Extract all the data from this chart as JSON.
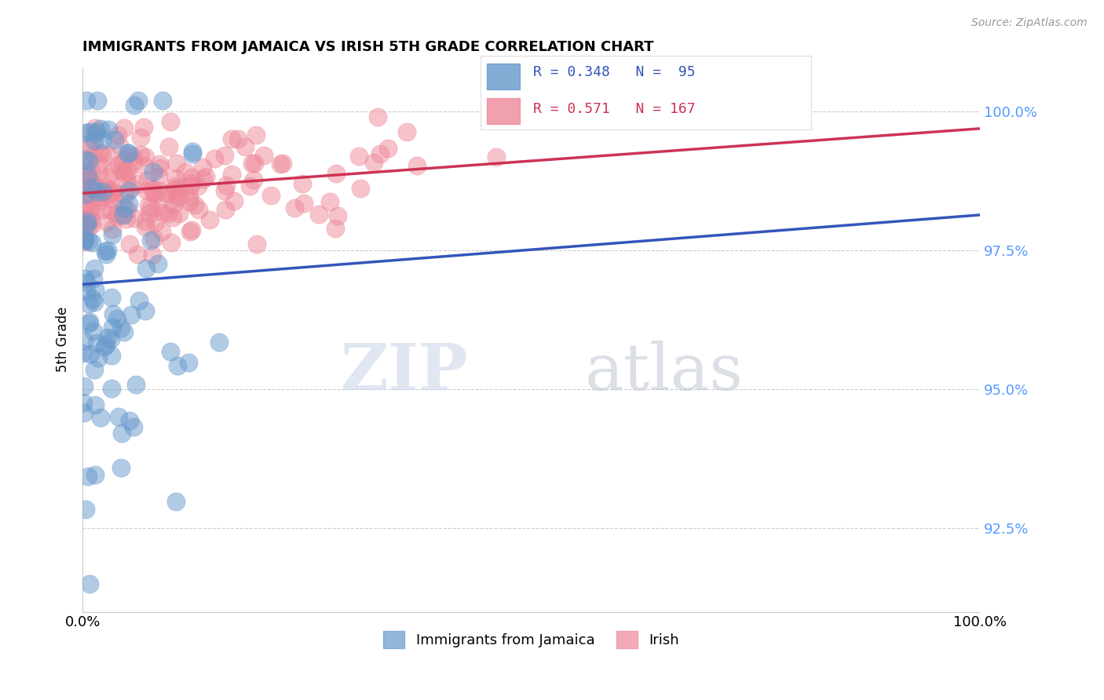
{
  "title": "IMMIGRANTS FROM JAMAICA VS IRISH 5TH GRADE CORRELATION CHART",
  "source": "Source: ZipAtlas.com",
  "ylabel": "5th Grade",
  "x_min": 0.0,
  "x_max": 100.0,
  "y_min": 91.0,
  "y_max": 100.8,
  "y_ticks": [
    92.5,
    95.0,
    97.5,
    100.0
  ],
  "y_tick_labels": [
    "92.5%",
    "95.0%",
    "97.5%",
    "100.0%"
  ],
  "series": [
    {
      "name": "Immigrants from Jamaica",
      "color": "#6699cc",
      "R": 0.348,
      "N": 95,
      "trend_color": "#3355bb"
    },
    {
      "name": "Irish",
      "color": "#ee8899",
      "R": 0.571,
      "N": 167,
      "trend_color": "#cc3355"
    }
  ],
  "watermark_zip": "ZIP",
  "watermark_atlas": "atlas",
  "background_color": "#ffffff",
  "grid_color": "#cccccc"
}
